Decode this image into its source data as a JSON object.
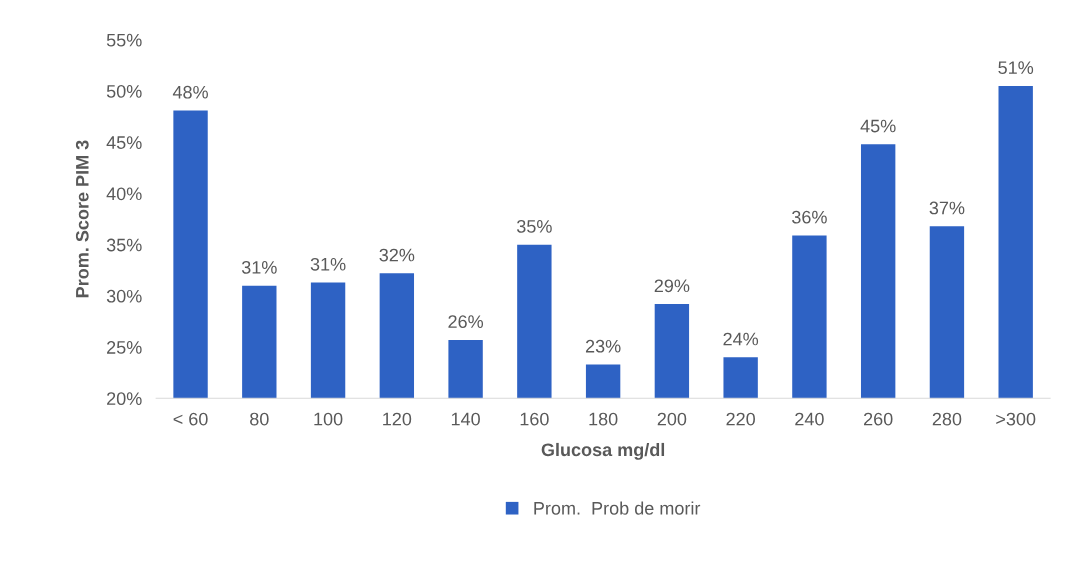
{
  "chart_data": {
    "type": "bar",
    "xlabel": "Glucosa mg/dl",
    "ylabel": "Prom. Score PIM 3",
    "categories": [
      "< 60",
      "80",
      "100",
      "120",
      "140",
      "160",
      "180",
      "200",
      "220",
      "240",
      "260",
      "280",
      ">300"
    ],
    "series": [
      {
        "name": "Prom.  Prob de morir",
        "color": "#2e62c4",
        "values": [
          48.1,
          31.0,
          31.3,
          32.2,
          25.7,
          35.0,
          23.3,
          29.2,
          24.0,
          35.9,
          44.8,
          36.8,
          50.5
        ],
        "value_labels": [
          "48%",
          "31%",
          "31%",
          "32%",
          "26%",
          "35%",
          "23%",
          "29%",
          "24%",
          "36%",
          "45%",
          "37%",
          "51%"
        ]
      }
    ],
    "ylim": [
      20,
      55
    ],
    "yticks": [
      {
        "value": 20,
        "label": "20%"
      },
      {
        "value": 25,
        "label": "25%"
      },
      {
        "value": 30,
        "label": "30%"
      },
      {
        "value": 35,
        "label": "35%"
      },
      {
        "value": 40,
        "label": "40%"
      },
      {
        "value": 45,
        "label": "45%"
      },
      {
        "value": 50,
        "label": "50%"
      },
      {
        "value": 55,
        "label": "55%"
      }
    ],
    "grid": false,
    "legend": "bottom"
  }
}
